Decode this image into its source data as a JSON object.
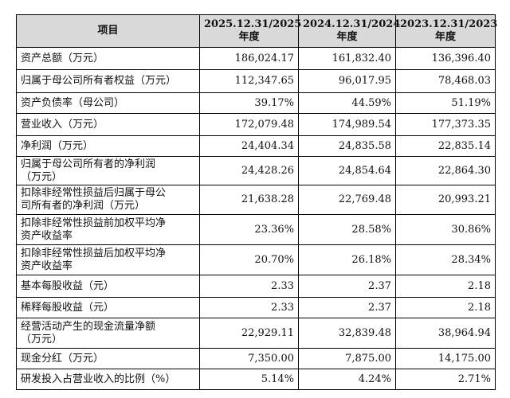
{
  "header": {
    "item": "项目",
    "col1": [
      "2025.12.31/2025",
      "年度"
    ],
    "col2": [
      "2024.12.31/2024",
      "年度"
    ],
    "col3": [
      "2023.12.31/2023",
      "年度"
    ]
  },
  "rows": [
    {
      "label": [
        "资产总额（万元）"
      ],
      "v": [
        "186,024.17",
        "161,832.40",
        "136,396.40"
      ]
    },
    {
      "label": [
        "归属于母公司所有者权益（万元）"
      ],
      "v": [
        "112,347.65",
        "96,017.95",
        "78,468.03"
      ]
    },
    {
      "label": [
        "资产负债率（母公司）"
      ],
      "v": [
        "39.17%",
        "44.59%",
        "51.19%"
      ]
    },
    {
      "label": [
        "营业收入（万元）"
      ],
      "v": [
        "172,079.48",
        "174,989.54",
        "177,373.35"
      ]
    },
    {
      "label": [
        "净利润（万元）"
      ],
      "v": [
        "24,404.34",
        "24,835.58",
        "22,835.14"
      ]
    },
    {
      "label": [
        "归属于母公司所有者的净利润",
        "（万元）"
      ],
      "v": [
        "24,428.26",
        "24,854.64",
        "22,864.30"
      ]
    },
    {
      "label": [
        "扣除非经常性损益后归属于母公",
        "司所有者的净利润（万元）"
      ],
      "v": [
        "21,638.28",
        "22,769.48",
        "20,993.21"
      ]
    },
    {
      "label": [
        "扣除非经常性损益前加权平均净",
        "资产收益率"
      ],
      "v": [
        "23.36%",
        "28.58%",
        "30.86%"
      ]
    },
    {
      "label": [
        "扣除非经常性损益后加权平均净",
        "资产收益率"
      ],
      "v": [
        "20.70%",
        "26.18%",
        "28.34%"
      ]
    },
    {
      "label": [
        "基本每股收益（元）"
      ],
      "v": [
        "2.33",
        "2.37",
        "2.18"
      ]
    },
    {
      "label": [
        "稀释每股收益（元）"
      ],
      "v": [
        "2.33",
        "2.37",
        "2.18"
      ]
    },
    {
      "label": [
        "经营活动产生的现金流量净额",
        "（万元）"
      ],
      "v": [
        "22,929.11",
        "32,839.48",
        "38,964.94"
      ]
    },
    {
      "label": [
        "现金分红（万元）"
      ],
      "v": [
        "7,350.00",
        "7,875.00",
        "14,175.00"
      ]
    },
    {
      "label": [
        "研发投入占营业收入的比例（%）"
      ],
      "v": [
        "5.14%",
        "4.24%",
        "2.71%"
      ]
    }
  ]
}
